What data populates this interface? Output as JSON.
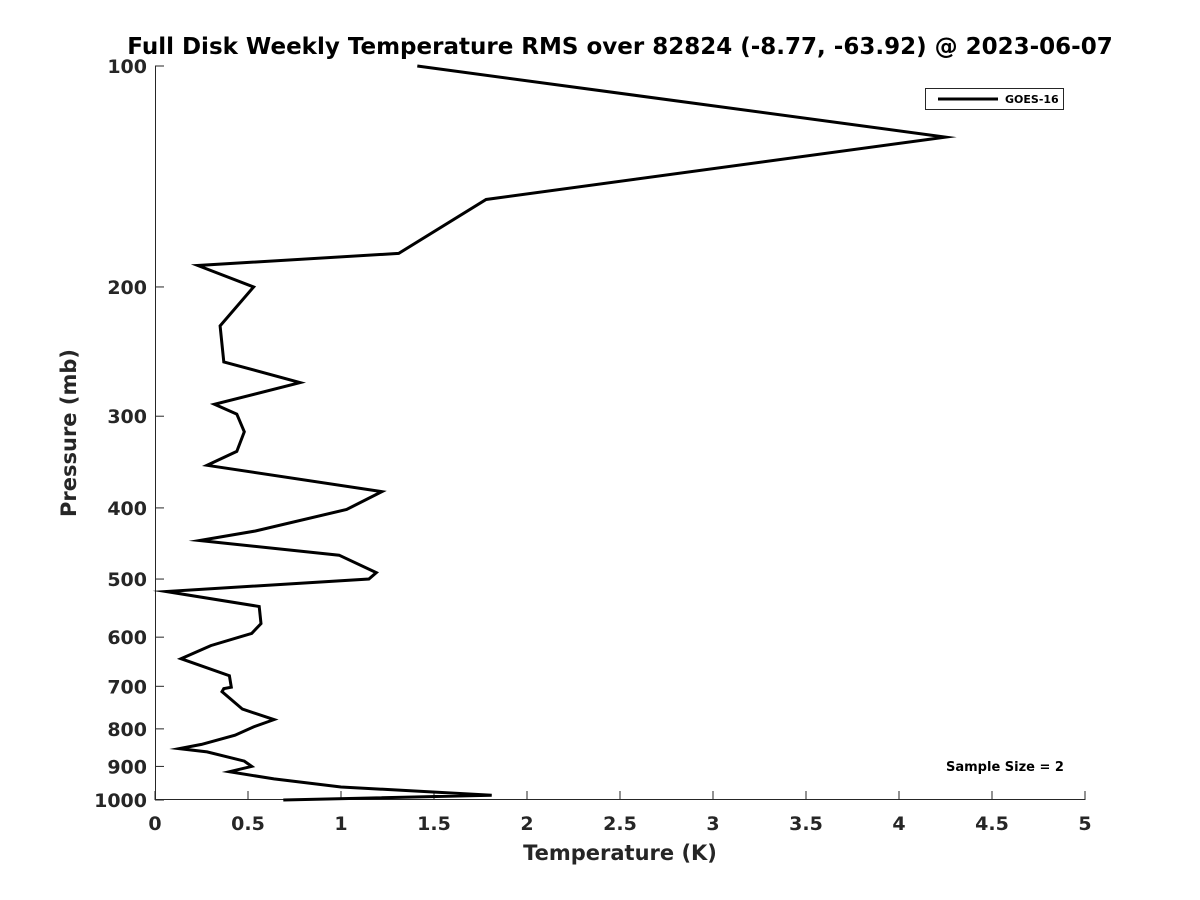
{
  "chart_data": {
    "type": "line",
    "title": "Full Disk Weekly Temperature RMS over 82824 (-8.77, -63.92) @ 2023-06-07",
    "xlabel": "Temperature (K)",
    "ylabel": "Pressure (mb)",
    "xlim": [
      0,
      5
    ],
    "ylim": [
      1000,
      100
    ],
    "y_scale": "log",
    "y_reversed": true,
    "grid": false,
    "x_ticks": [
      0,
      0.5,
      1,
      1.5,
      2,
      2.5,
      3,
      3.5,
      4,
      4.5,
      5
    ],
    "x_tick_labels": [
      "0",
      "0.5",
      "1",
      "1.5",
      "2",
      "2.5",
      "3",
      "3.5",
      "4",
      "4.5",
      "5"
    ],
    "y_ticks": [
      100,
      200,
      300,
      400,
      500,
      600,
      700,
      800,
      900,
      1000
    ],
    "y_tick_labels": [
      "100",
      "200",
      "300",
      "400",
      "500",
      "600",
      "700",
      "800",
      "900",
      "1000"
    ],
    "legend": {
      "position": "top-right",
      "entries": [
        "GOES-16"
      ]
    },
    "annotations": [
      "Sample Size = 2"
    ],
    "series": [
      {
        "name": "GOES-16",
        "color": "#000000",
        "x": [
          1.41,
          4.25,
          1.78,
          1.31,
          0.23,
          0.53,
          0.35,
          0.37,
          0.78,
          0.32,
          0.44,
          0.48,
          0.44,
          0.28,
          1.22,
          1.03,
          0.54,
          0.24,
          0.99,
          1.19,
          1.15,
          0.06,
          0.56,
          0.57,
          0.52,
          0.3,
          0.14,
          0.4,
          0.41,
          0.37,
          0.36,
          0.47,
          0.64,
          0.53,
          0.43,
          0.25,
          0.13,
          0.28,
          0.48,
          0.52,
          0.4,
          0.64,
          1.0,
          1.81,
          0.69
        ],
        "y": [
          100,
          125,
          152,
          180,
          187,
          200,
          226,
          253,
          270,
          289,
          298,
          315,
          335,
          350,
          380,
          402,
          430,
          443,
          464,
          490,
          500,
          520,
          545,
          575,
          593,
          616,
          642,
          677,
          702,
          705,
          712,
          752,
          777,
          795,
          816,
          840,
          851,
          860,
          885,
          900,
          915,
          936,
          960,
          985,
          1000
        ]
      }
    ]
  }
}
